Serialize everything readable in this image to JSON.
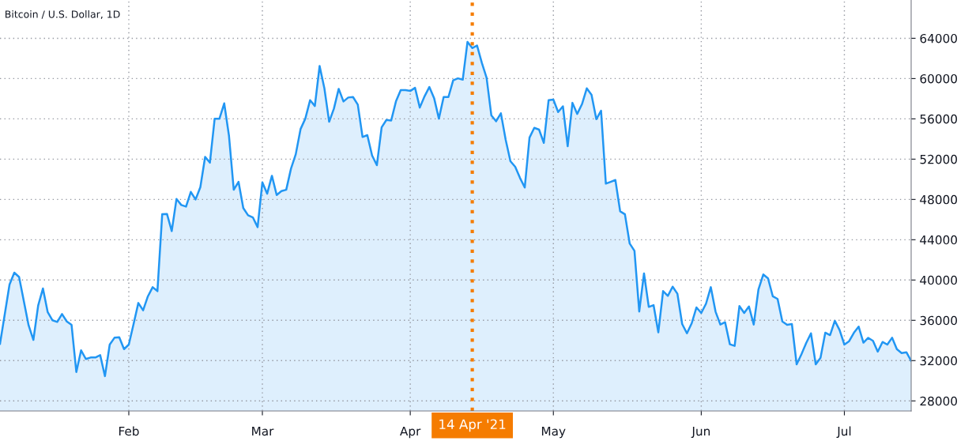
{
  "chart_data": {
    "type": "area",
    "title": "Bitcoin / U.S. Dollar, 1D",
    "series": [
      {
        "color": "#2196f3",
        "x": [
          "2021-01-05",
          "2021-01-07",
          "2021-01-08",
          "2021-01-09",
          "2021-01-11",
          "2021-01-12",
          "2021-01-13",
          "2021-01-14",
          "2021-01-15",
          "2021-01-16",
          "2021-01-17",
          "2021-01-18",
          "2021-01-19",
          "2021-01-20",
          "2021-01-21",
          "2021-01-22",
          "2021-01-23",
          "2021-01-24",
          "2021-01-25",
          "2021-01-26",
          "2021-01-27",
          "2021-01-28",
          "2021-01-29",
          "2021-01-30",
          "2021-01-31",
          "2021-02-01",
          "2021-02-02",
          "2021-02-03",
          "2021-02-04",
          "2021-02-05",
          "2021-02-06",
          "2021-02-07",
          "2021-02-08",
          "2021-02-09",
          "2021-02-10",
          "2021-02-11",
          "2021-02-12",
          "2021-02-13",
          "2021-02-14",
          "2021-02-15",
          "2021-02-16",
          "2021-02-17",
          "2021-02-18",
          "2021-02-19",
          "2021-02-20",
          "2021-02-21",
          "2021-02-22",
          "2021-02-23",
          "2021-02-24",
          "2021-02-25",
          "2021-02-26",
          "2021-02-27",
          "2021-02-28",
          "2021-03-01",
          "2021-03-02",
          "2021-03-03",
          "2021-03-04",
          "2021-03-05",
          "2021-03-06",
          "2021-03-07",
          "2021-03-08",
          "2021-03-09",
          "2021-03-10",
          "2021-03-11",
          "2021-03-12",
          "2021-03-13",
          "2021-03-14",
          "2021-03-15",
          "2021-03-16",
          "2021-03-17",
          "2021-03-18",
          "2021-03-19",
          "2021-03-20",
          "2021-03-21",
          "2021-03-22",
          "2021-03-23",
          "2021-03-24",
          "2021-03-25",
          "2021-03-26",
          "2021-03-27",
          "2021-03-28",
          "2021-03-29",
          "2021-03-30",
          "2021-03-31",
          "2021-04-01",
          "2021-04-02",
          "2021-04-03",
          "2021-04-04",
          "2021-04-05",
          "2021-04-06",
          "2021-04-07",
          "2021-04-08",
          "2021-04-09",
          "2021-04-10",
          "2021-04-11",
          "2021-04-12",
          "2021-04-13",
          "2021-04-14",
          "2021-04-15",
          "2021-04-16",
          "2021-04-17",
          "2021-04-18",
          "2021-04-19",
          "2021-04-20",
          "2021-04-21",
          "2021-04-22",
          "2021-04-23",
          "2021-04-24",
          "2021-04-25",
          "2021-04-26",
          "2021-04-27",
          "2021-04-28",
          "2021-04-29",
          "2021-04-30",
          "2021-05-01",
          "2021-05-02",
          "2021-05-03",
          "2021-05-04",
          "2021-05-05",
          "2021-05-06",
          "2021-05-07",
          "2021-05-08",
          "2021-05-09",
          "2021-05-10",
          "2021-05-11",
          "2021-05-12",
          "2021-05-13",
          "2021-05-14",
          "2021-05-15",
          "2021-05-16",
          "2021-05-17",
          "2021-05-18",
          "2021-05-19",
          "2021-05-20",
          "2021-05-21",
          "2021-05-22",
          "2021-05-23",
          "2021-05-24",
          "2021-05-25",
          "2021-05-26",
          "2021-05-27",
          "2021-05-28",
          "2021-05-29",
          "2021-05-30",
          "2021-05-31",
          "2021-06-01",
          "2021-06-02",
          "2021-06-03",
          "2021-06-04",
          "2021-06-05",
          "2021-06-06",
          "2021-06-07",
          "2021-06-08",
          "2021-06-09",
          "2021-06-10",
          "2021-06-11",
          "2021-06-12",
          "2021-06-13",
          "2021-06-14",
          "2021-06-15",
          "2021-06-16",
          "2021-06-17",
          "2021-06-18",
          "2021-06-19",
          "2021-06-20",
          "2021-06-21",
          "2021-06-22",
          "2021-06-23",
          "2021-06-24",
          "2021-06-25",
          "2021-06-26",
          "2021-06-27",
          "2021-06-28",
          "2021-06-29",
          "2021-06-30",
          "2021-07-01",
          "2021-07-02",
          "2021-07-03",
          "2021-07-04",
          "2021-07-05",
          "2021-07-06",
          "2021-07-07",
          "2021-07-08",
          "2021-07-09",
          "2021-07-10",
          "2021-07-11",
          "2021-07-12",
          "2021-07-13",
          "2021-07-14",
          "2021-07-15"
        ],
        "values": [
          33670,
          39550,
          40730,
          40300,
          35500,
          34060,
          37460,
          39160,
          36810,
          36000,
          35840,
          36620,
          35890,
          35550,
          30870,
          33020,
          32160,
          32310,
          32310,
          32550,
          30460,
          33590,
          34270,
          34320,
          33140,
          33590,
          35630,
          37720,
          36990,
          38380,
          39290,
          38900,
          46530,
          46560,
          44860,
          48050,
          47450,
          47290,
          48750,
          48000,
          49220,
          52230,
          51650,
          56020,
          56020,
          57540,
          54320,
          48960,
          49750,
          47140,
          46430,
          46220,
          45250,
          49700,
          48570,
          50350,
          48440,
          48830,
          48960,
          51060,
          52490,
          54980,
          56020,
          57850,
          57280,
          61250,
          59030,
          55710,
          57020,
          58980,
          57730,
          58120,
          58170,
          57410,
          54200,
          54380,
          52360,
          51400,
          55160,
          55890,
          55840,
          57730,
          58850,
          58850,
          58770,
          59080,
          57120,
          58240,
          59160,
          58060,
          56020,
          58170,
          58170,
          59820,
          60020,
          59890,
          63650,
          63030,
          63290,
          61570,
          60080,
          56340,
          55760,
          56550,
          53930,
          51790,
          51240,
          50140,
          49180,
          54140,
          55110,
          54930,
          53620,
          57850,
          57910,
          56680,
          57250,
          53280,
          57590,
          56490,
          57460,
          59030,
          58380,
          55970,
          56810,
          49570,
          49750,
          49930,
          46820,
          46530,
          43620,
          42900,
          36870,
          40650,
          37330,
          37510,
          34800,
          38900,
          38430,
          39340,
          38640,
          35630,
          34710,
          35710,
          37280,
          36730,
          37650,
          39290,
          36860,
          35580,
          35810,
          33620,
          33460,
          37410,
          36730,
          37380,
          35580,
          39080,
          40550,
          40160,
          38380,
          38120,
          35890,
          35550,
          35630,
          31630,
          32630,
          33750,
          34710,
          31630,
          32280,
          34770,
          34530,
          35950,
          35030,
          33590,
          33930,
          34760,
          35370,
          33780,
          34260,
          33960,
          32890,
          33850,
          33590,
          34270,
          33140,
          32750,
          32830,
          31970
        ]
      }
    ],
    "xlim": [
      "2021-01-05",
      "2021-07-15"
    ],
    "xticks": [
      {
        "value": "2021-02-01",
        "label": "Feb"
      },
      {
        "value": "2021-03-01",
        "label": "Mar"
      },
      {
        "value": "2021-04-01",
        "label": "Apr"
      },
      {
        "value": "2021-05-01",
        "label": "May"
      },
      {
        "value": "2021-06-01",
        "label": "Jun"
      },
      {
        "value": "2021-07-01",
        "label": "Jul"
      }
    ],
    "ylim": [
      27000,
      67800
    ],
    "yticks": [
      28000,
      32000,
      36000,
      40000,
      44000,
      48000,
      52000,
      56000,
      60000,
      64000
    ],
    "grid": true,
    "ref_lines": [
      {
        "axis": "x",
        "value": "2021-04-14",
        "label": "14 Apr '21",
        "color": "#f57c00",
        "line_style": "dotted"
      }
    ]
  }
}
